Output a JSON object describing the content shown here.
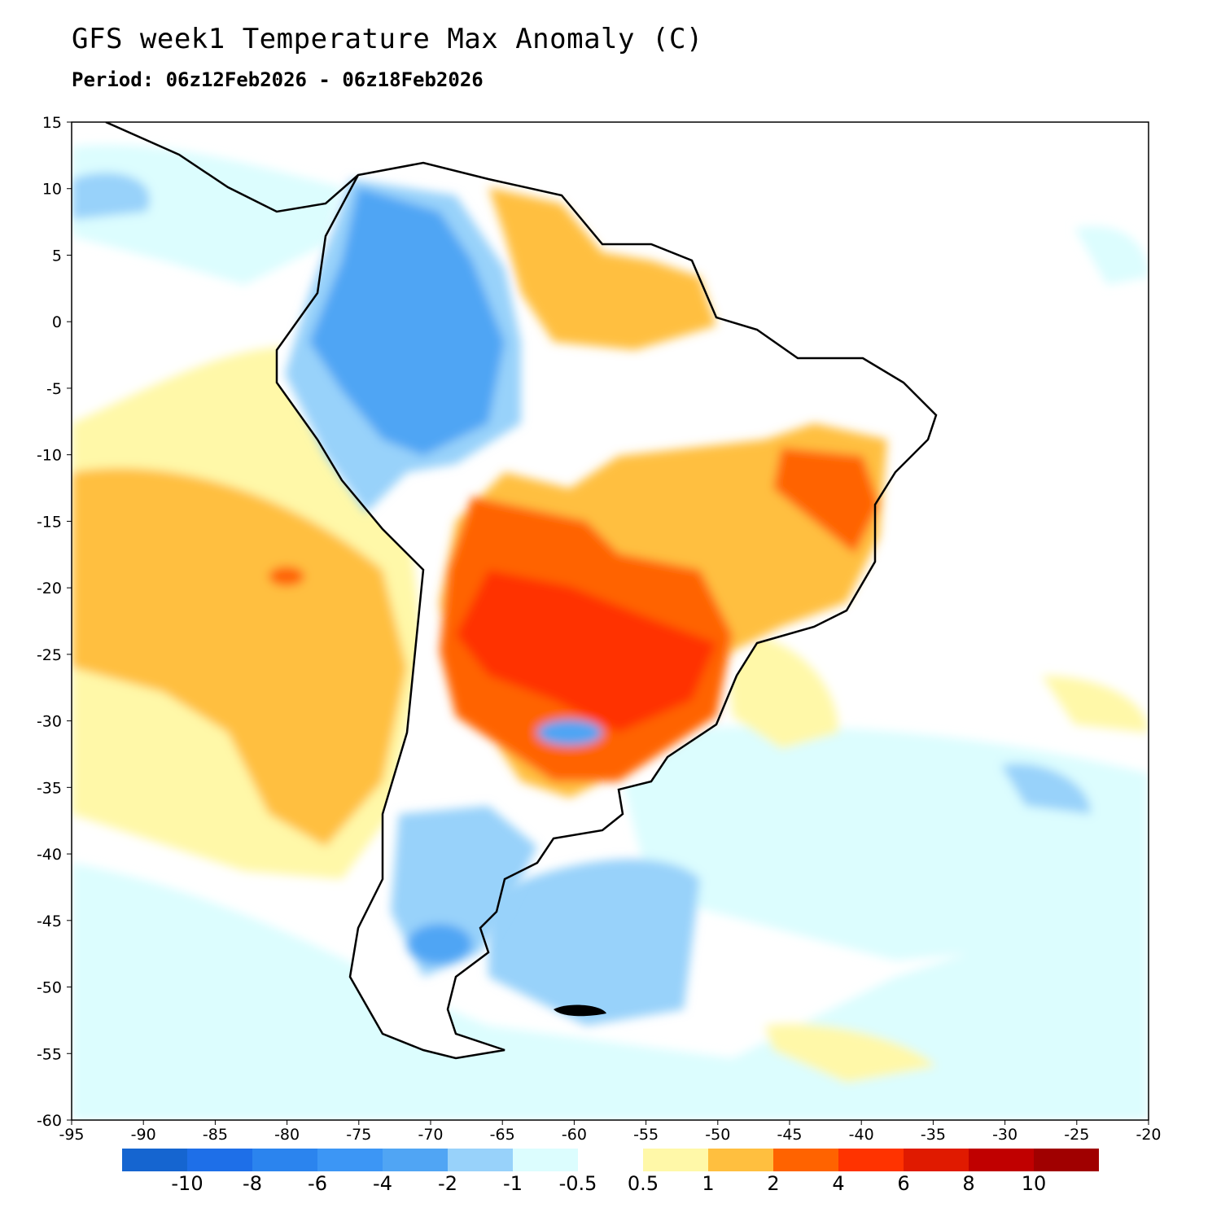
{
  "header": {
    "title": "GFS week1 Temperature Max Anomaly (C)",
    "subtitle": "Period: 06z12Feb2026 - 06z18Feb2026"
  },
  "map": {
    "projection": "lat-lon",
    "lon_range": [
      -95,
      -20
    ],
    "lat_range": [
      -60,
      15
    ],
    "x_ticks": [
      "-95",
      "-90",
      "-85",
      "-80",
      "-75",
      "-70",
      "-65",
      "-60",
      "-55",
      "-50",
      "-45",
      "-40",
      "-35",
      "-30",
      "-25",
      "-20"
    ],
    "y_ticks": [
      "15",
      "10",
      "5",
      "0",
      "-5",
      "-10",
      "-15",
      "-20",
      "-25",
      "-30",
      "-35",
      "-40",
      "-45",
      "-50",
      "-55",
      "-60"
    ],
    "coastline_color": "#000000",
    "border_color": "#a0a0a0"
  },
  "colorbar": {
    "colors": [
      "#1565d0",
      "#1e6fe8",
      "#2b84ee",
      "#3c96f5",
      "#50a5f4",
      "#98d2fa",
      "#dcfdfe",
      "#ffffff",
      "#fff8a8",
      "#ffbf3f",
      "#ff6300",
      "#ff3300",
      "#e01a00",
      "#c00000",
      "#a00000"
    ],
    "labels": [
      "-10",
      "-8",
      "-6",
      "-4",
      "-2",
      "-1",
      "-0.5",
      "0.5",
      "1",
      "2",
      "4",
      "6",
      "8",
      "10"
    ]
  }
}
